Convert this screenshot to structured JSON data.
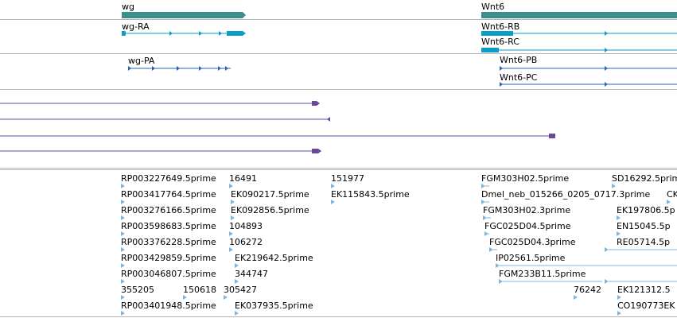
{
  "colors": {
    "gene_track": "#3a8f8c",
    "transcript": "#0a9ec4",
    "transcript_neg": "#2a62b2",
    "alignment": "#6a4a98",
    "est": "#7fb6dc",
    "divider": "#b4b4b4"
  },
  "genes": [
    "wg",
    "Wnt6"
  ],
  "transcripts": [
    "wg-RA",
    "Wnt6-RB",
    "Wnt6-RC",
    "wg-PA",
    "Wnt6-PB",
    "Wnt6-PC"
  ],
  "est_labels": [
    "RP003227649.5prime",
    "16491",
    "151977",
    "FGM303H02.5prime",
    "SD16292.5prime",
    "RP003417764.5prime",
    "EK090217.5prime",
    "EK115843.5prime",
    "Dmel_neb_015266_0205_0717.3prime",
    "CK",
    "RP003276166.5prime",
    "EK092856.5prime",
    "FGM303H02.3prime",
    "EK197806.5p",
    "RP003598683.5prime",
    "104893",
    "FGC025D04.5prime",
    "EN15045.5p",
    "RP003376228.5prime",
    "106272",
    "FGC025D04.3prime",
    "RE05714.5p",
    "RP003429859.5prime",
    "EK219642.5prime",
    "IP02561.5prime",
    "RP003046807.5prime",
    "344747",
    "FGM233B11.5prime",
    "355205",
    "150618",
    "305427",
    "76242",
    "EK121312.5",
    "RP003401948.5prime",
    "EK037935.5prime",
    "CO190773EK"
  ]
}
